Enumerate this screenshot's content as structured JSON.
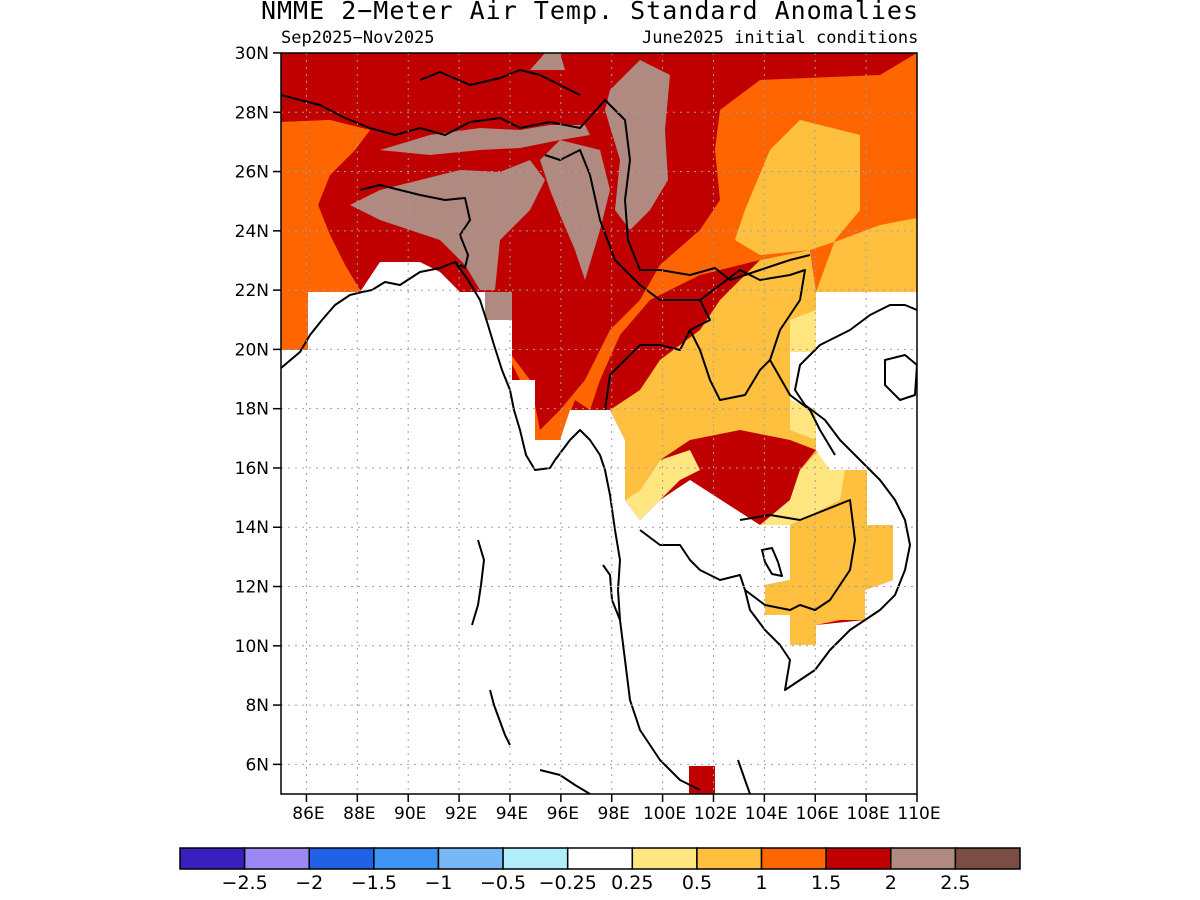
{
  "title": "NMME 2−Meter Air Temp. Standard Anomalies",
  "season": "Sep2025−Nov2025",
  "init": "June2025 initial conditions",
  "map": {
    "lon_range": [
      85,
      110
    ],
    "lat_range": [
      5,
      30
    ],
    "lat_ticks": [
      {
        "value": 30,
        "label": "30N"
      },
      {
        "value": 28,
        "label": "28N"
      },
      {
        "value": 26,
        "label": "26N"
      },
      {
        "value": 24,
        "label": "24N"
      },
      {
        "value": 22,
        "label": "22N"
      },
      {
        "value": 20,
        "label": "20N"
      },
      {
        "value": 18,
        "label": "18N"
      },
      {
        "value": 16,
        "label": "16N"
      },
      {
        "value": 14,
        "label": "14N"
      },
      {
        "value": 12,
        "label": "12N"
      },
      {
        "value": 10,
        "label": "10N"
      },
      {
        "value": 8,
        "label": "8N"
      },
      {
        "value": 6,
        "label": "6N"
      }
    ],
    "lon_ticks": [
      {
        "value": 86,
        "label": "86E"
      },
      {
        "value": 88,
        "label": "88E"
      },
      {
        "value": 90,
        "label": "90E"
      },
      {
        "value": 92,
        "label": "92E"
      },
      {
        "value": 94,
        "label": "94E"
      },
      {
        "value": 96,
        "label": "96E"
      },
      {
        "value": 98,
        "label": "98E"
      },
      {
        "value": 100,
        "label": "100E"
      },
      {
        "value": 102,
        "label": "102E"
      },
      {
        "value": 104,
        "label": "104E"
      },
      {
        "value": 106,
        "label": "106E"
      },
      {
        "value": 108,
        "label": "108E"
      },
      {
        "value": 110,
        "label": "110E"
      }
    ],
    "grid": true,
    "ocean_mask_color": "#ffffff"
  },
  "colorbar": {
    "colors": [
      "#3a1fbf",
      "#9b88f4",
      "#1f62e6",
      "#3d94f2",
      "#78b8f7",
      "#b0eefa",
      "#ffffff",
      "#ffe680",
      "#ffbf3f",
      "#ff6500",
      "#c00000",
      "#b08a80",
      "#7b4e43"
    ],
    "labels": [
      "−2.5",
      "−2",
      "−1.5",
      "−1",
      "−0.5",
      "−0.25",
      "0.25",
      "0.5",
      "1",
      "1.5",
      "2",
      "2.5"
    ]
  }
}
